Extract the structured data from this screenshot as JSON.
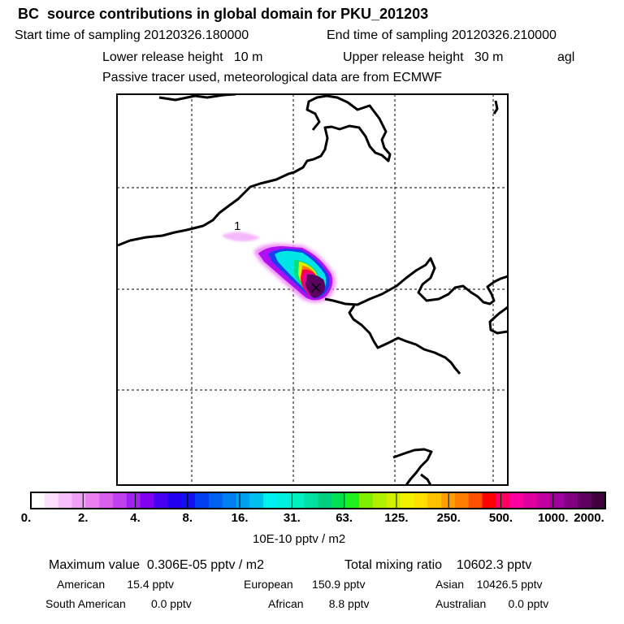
{
  "header": {
    "title": "BC  source contributions in global domain for PKU_201203",
    "start_time": "Start time of sampling 20120326.180000",
    "end_time": "End time of sampling 20120326.210000",
    "lower_height": "Lower release height   10 m",
    "upper_height": "Upper release height   30 m",
    "agl": "agl",
    "note": "Passive tracer used, meteorological data are from ECMWF"
  },
  "map": {
    "marker_label": "1",
    "plume_colors": [
      "#ff66ff",
      "#a000ff",
      "#00e6e6",
      "#00ff80",
      "#e0e000",
      "#ff0000",
      "#ff00a0",
      "#4a0050"
    ]
  },
  "colorbar": {
    "tick_labels": [
      "0.",
      "2.",
      "4.",
      "8.",
      "16.",
      "31.",
      "63.",
      "125.",
      "250.",
      "500.",
      "1000.",
      "2000."
    ],
    "colors": [
      "#ffffff",
      "#fde0fe",
      "#f8c0fb",
      "#f0a0f6",
      "#e880f0",
      "#d860ec",
      "#c040f0",
      "#a020f0",
      "#8000f0",
      "#4800f0",
      "#2000f0",
      "#1010f0",
      "#0040f0",
      "#0060f0",
      "#0080f0",
      "#00a0f0",
      "#00c0f0",
      "#00f0f0",
      "#00f0e0",
      "#00f0c0",
      "#00e0a0",
      "#00d080",
      "#00e050",
      "#20f020",
      "#80f000",
      "#b0f000",
      "#d0f000",
      "#f0f000",
      "#ffe000",
      "#ffc000",
      "#ffa000",
      "#ff8000",
      "#ff5000",
      "#ff0000",
      "#ff0060",
      "#ff00a0",
      "#e000a0",
      "#c000a0",
      "#a000a0",
      "#800080",
      "#600060",
      "#400040"
    ],
    "units": "10E-10 pptv / m2"
  },
  "stats": {
    "max_value": "Maximum value  0.306E-05 pptv / m2",
    "total_ratio": "Total mixing ratio    10602.3 pptv",
    "american": "American       15.4 pptv",
    "european": "European      150.9 pptv",
    "asian": "Asian    10426.5 pptv",
    "south_american": "South American        0.0 pptv",
    "african": "African        8.8 pptv",
    "australian": "Australian       0.0 pptv"
  }
}
